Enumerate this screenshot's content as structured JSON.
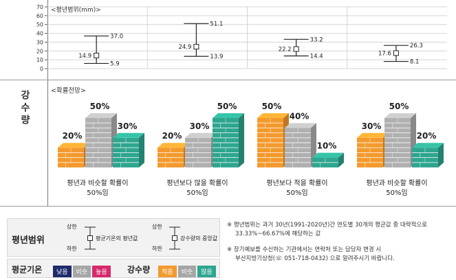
{
  "row_label": "강수량",
  "range_chart": {
    "caption": "<평년범위(mm)>",
    "y_ticks": [
      "70",
      "60",
      "50",
      "40",
      "30",
      "20",
      "10",
      "0"
    ],
    "periods": [
      {
        "lower": 5.9,
        "middle": 14.9,
        "upper": 37.0,
        "lower_label": "5.9",
        "middle_label": "14.9",
        "upper_label": "37.0"
      },
      {
        "lower": 13.9,
        "middle": 24.9,
        "upper": 51.1,
        "lower_label": "13.9",
        "middle_label": "24.9",
        "upper_label": "51.1"
      },
      {
        "lower": 14.4,
        "middle": 22.2,
        "upper": 33.2,
        "lower_label": "14.4",
        "middle_label": "22.2",
        "upper_label": "33.2"
      },
      {
        "lower": 8.1,
        "middle": 17.6,
        "upper": 26.3,
        "lower_label": "8.1",
        "middle_label": "17.6",
        "upper_label": "26.3"
      }
    ]
  },
  "chart_data": {
    "type": "bar",
    "title": "<확률전망>",
    "categories": [
      "적음",
      "비슷",
      "많음"
    ],
    "series": [
      {
        "values": [
          20,
          50,
          30
        ],
        "labels": [
          "20%",
          "50%",
          "30%"
        ],
        "caption1": "평년과 비슷할 확률이",
        "caption2": "50%임"
      },
      {
        "values": [
          20,
          30,
          50
        ],
        "labels": [
          "20%",
          "30%",
          "50%"
        ],
        "caption1": "평년보다 많을 확률이",
        "caption2": "50%임"
      },
      {
        "values": [
          50,
          40,
          10
        ],
        "labels": [
          "50%",
          "40%",
          "10%"
        ],
        "caption1": "평년보다 적을 확률이",
        "caption2": "50%임"
      },
      {
        "values": [
          30,
          50,
          20
        ],
        "labels": [
          "30%",
          "50%",
          "20%"
        ],
        "caption1": "평년과 비슷할 확률이",
        "caption2": "50%임"
      }
    ],
    "colors": {
      "적음": "#f39a2e",
      "비슷": "#b0b0b0",
      "많음": "#2fa68f"
    }
  },
  "legend": {
    "range_title": "평년범위",
    "upper": "상한",
    "lower": "하한",
    "temp_mid": "평균기온의 평년값",
    "rain_mid": "강수량의 중앙값",
    "temp_title": "평균기온",
    "rain_title": "강수량",
    "temp_chips": [
      {
        "label": "낮음",
        "color": "#1f2a6b"
      },
      {
        "label": "비슷",
        "color": "#a6a6a6"
      },
      {
        "label": "높음",
        "color": "#d6286a"
      }
    ],
    "rain_chips": [
      {
        "label": "적음",
        "color": "#f39a2e"
      },
      {
        "label": "비슷",
        "color": "#a6a6a6"
      },
      {
        "label": "많음",
        "color": "#2fa68f"
      }
    ]
  },
  "notes": {
    "n1_a": "※ 평년범위는 과거 30년(1991-2020년)간 연도별 30개의 평균값 중 대략적으로",
    "n1_b": "33.33%~66.67%에 해당하는 값",
    "n2_a": "※ 장기예보를 수신하는 기관에서는 연락처 또는 담당자 변경 시",
    "n2_b": "부산지방기상청(☏ 051-718-0432) 으로 알려주시기 바랍니다."
  }
}
